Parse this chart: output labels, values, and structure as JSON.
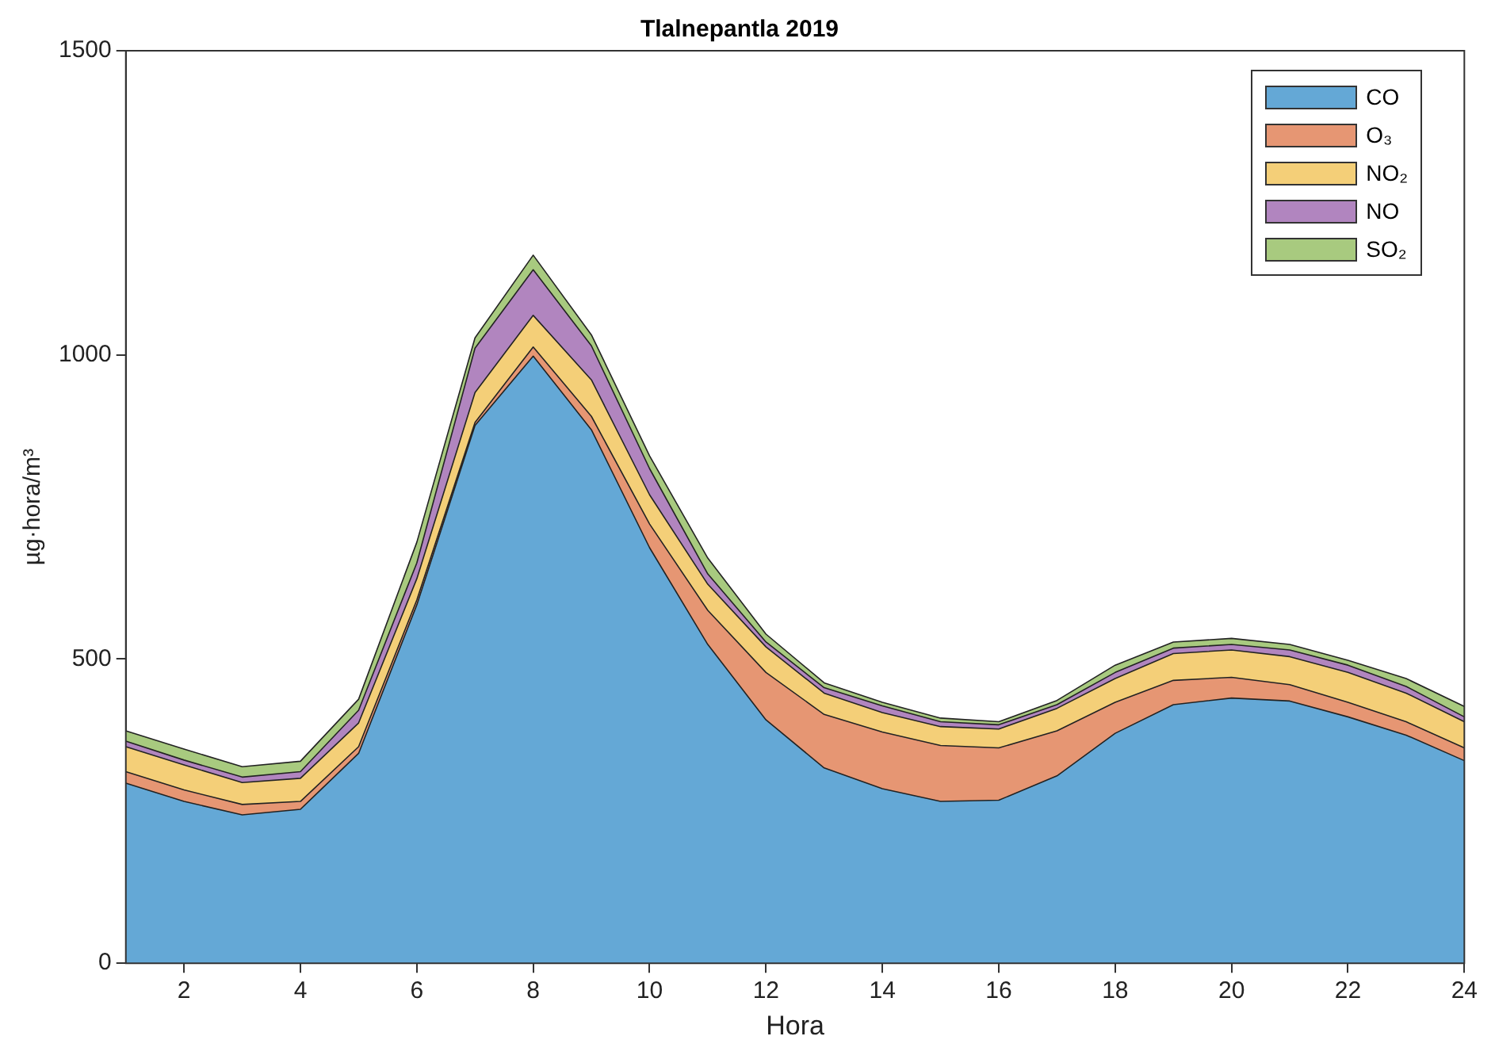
{
  "chart_data": {
    "type": "area",
    "title": "Tlalnepantla 2019",
    "xlabel": "Hora",
    "ylabel": "µg·hora/m³",
    "x": [
      1,
      2,
      3,
      4,
      5,
      6,
      7,
      8,
      9,
      10,
      11,
      12,
      13,
      14,
      15,
      16,
      17,
      18,
      19,
      20,
      21,
      22,
      23,
      24
    ],
    "stacked": true,
    "series": [
      {
        "name": "CO",
        "color": "#64a8d6",
        "values": [
          296,
          266,
          244,
          253,
          345,
          589,
          884,
          998,
          877,
          683,
          524,
          400,
          321,
          287,
          266,
          268,
          308,
          378,
          425,
          436,
          431,
          405,
          375,
          333
        ]
      },
      {
        "name": "O₃",
        "color": "#e69673",
        "values": [
          19,
          19,
          17,
          13,
          11,
          8,
          5,
          15,
          22,
          39,
          56,
          78,
          88,
          93,
          92,
          86,
          74,
          51,
          40,
          34,
          27,
          24,
          22,
          21
        ]
      },
      {
        "name": "NO₂",
        "color": "#f4cf78",
        "values": [
          41,
          41,
          36,
          38,
          39,
          35,
          49,
          52,
          60,
          48,
          43,
          42,
          35,
          32,
          31,
          31,
          37,
          39,
          44,
          45,
          46,
          49,
          47,
          43
        ]
      },
      {
        "name": "NO",
        "color": "#b185bf",
        "values": [
          9,
          8,
          9,
          11,
          21,
          26,
          73,
          75,
          56,
          43,
          17,
          8,
          9,
          11,
          8,
          7,
          6,
          10,
          9,
          9,
          11,
          12,
          11,
          8
        ]
      },
      {
        "name": "SO₂",
        "color": "#a8ca7f",
        "values": [
          17,
          18,
          17,
          17,
          18,
          34,
          17,
          24,
          18,
          21,
          26,
          13,
          8,
          6,
          6,
          5,
          7,
          12,
          10,
          10,
          9,
          8,
          13,
          17
        ]
      }
    ],
    "xlim": [
      1,
      24
    ],
    "xticks": [
      2,
      4,
      6,
      8,
      10,
      12,
      14,
      16,
      18,
      20,
      22,
      24
    ],
    "ylim": [
      0,
      1500
    ],
    "yticks": [
      0,
      500,
      1000,
      1500
    ],
    "grid": false,
    "legend": "top right"
  }
}
